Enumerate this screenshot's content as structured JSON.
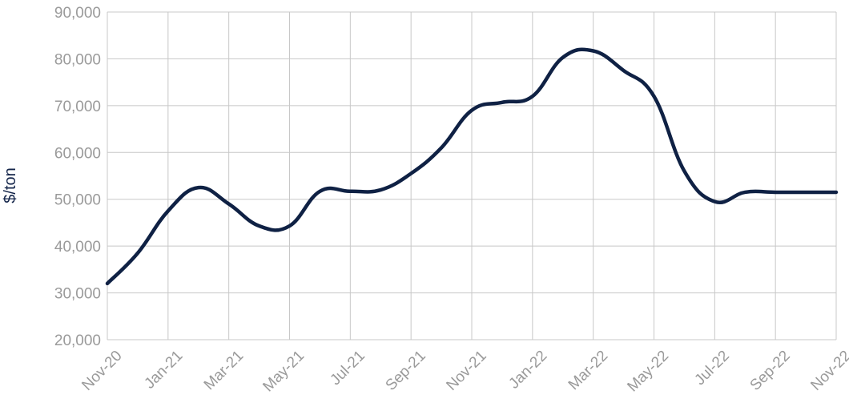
{
  "chart_data": {
    "type": "line",
    "title": "",
    "xlabel": "",
    "ylabel": "$/ton",
    "ylim": [
      20000,
      90000
    ],
    "yticks": [
      20000,
      30000,
      40000,
      50000,
      60000,
      70000,
      80000,
      90000
    ],
    "ytick_labels": [
      "20,000",
      "30,000",
      "40,000",
      "50,000",
      "60,000",
      "70,000",
      "80,000",
      "90,000"
    ],
    "xtick_labels": [
      "Nov-20",
      "Jan-21",
      "Mar-21",
      "May-21",
      "Jul-21",
      "Sep-21",
      "Nov-21",
      "Jan-22",
      "Mar-22",
      "May-22",
      "Jul-22",
      "Sep-22",
      "Nov-22"
    ],
    "grid": true,
    "legend": "none",
    "line_color": "#0f2144",
    "x": [
      "Nov-20",
      "Dec-20",
      "Jan-21",
      "Feb-21",
      "Mar-21",
      "Apr-21",
      "May-21",
      "Jun-21",
      "Jul-21",
      "Aug-21",
      "Sep-21",
      "Oct-21",
      "Nov-21",
      "Dec-21",
      "Jan-22",
      "Feb-22",
      "Mar-22",
      "Apr-22",
      "May-22",
      "Jun-22",
      "Jul-22",
      "Aug-22",
      "Sep-22",
      "Oct-22",
      "Nov-22"
    ],
    "values": [
      32000,
      38500,
      47500,
      52500,
      49000,
      44300,
      44300,
      51700,
      51700,
      52000,
      55500,
      61000,
      69000,
      70700,
      72000,
      80300,
      81700,
      77500,
      72000,
      56000,
      49500,
      51500,
      51500,
      51500,
      51500
    ]
  }
}
